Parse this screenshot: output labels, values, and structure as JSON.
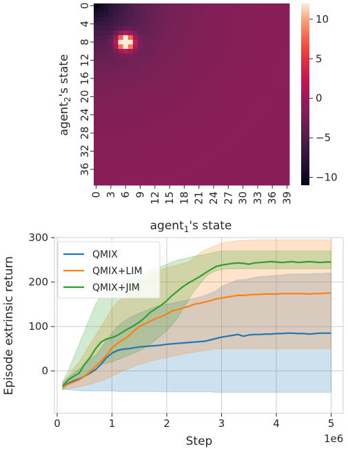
{
  "chart_data": [
    {
      "type": "heatmap",
      "xlabel_main": "agent",
      "xlabel_sub": "1",
      "xlabel_tail": "'s state",
      "ylabel_main": "agent",
      "ylabel_sub": "2",
      "ylabel_tail": "'s state",
      "grid_size": 40,
      "x_ticks": [
        "0",
        "3",
        "6",
        "9",
        "12",
        "15",
        "18",
        "21",
        "24",
        "27",
        "30",
        "33",
        "36",
        "39"
      ],
      "y_ticks": [
        "0",
        "4",
        "8",
        "12",
        "16",
        "20",
        "24",
        "28",
        "32",
        "36"
      ],
      "colorbar_ticks": [
        10,
        5,
        0,
        -5,
        -10
      ],
      "value_range": [
        -11,
        12
      ],
      "peak": {
        "x": 6,
        "y": 8,
        "value": 12
      },
      "floor_value": -11,
      "colormap": "rocket"
    },
    {
      "type": "line",
      "xlabel": "Step",
      "ylabel": "Episode extrinsic return",
      "x_offset_label": "1e6",
      "xlim": [
        -0.05,
        5.22
      ],
      "ylim": [
        -95,
        300
      ],
      "x_ticks": [
        0,
        1,
        2,
        3,
        4,
        5
      ],
      "y_ticks": [
        0,
        100,
        200,
        300
      ],
      "grid": true,
      "legend_position": "top-left",
      "x": [
        0.1,
        0.2,
        0.3,
        0.4,
        0.5,
        0.6,
        0.7,
        0.8,
        0.9,
        1.0,
        1.1,
        1.2,
        1.3,
        1.4,
        1.5,
        1.6,
        1.7,
        1.8,
        1.9,
        2.0,
        2.1,
        2.2,
        2.3,
        2.4,
        2.5,
        2.6,
        2.7,
        2.8,
        2.9,
        3.0,
        3.1,
        3.2,
        3.3,
        3.4,
        3.5,
        3.6,
        3.7,
        3.8,
        3.9,
        4.0,
        4.1,
        4.2,
        4.3,
        4.4,
        4.5,
        4.6,
        4.7,
        4.8,
        4.9,
        5.0
      ],
      "series": [
        {
          "name": "QMIX",
          "color": "#1f77b4",
          "values": [
            -35,
            -28,
            -22,
            -18,
            -12,
            -5,
            3,
            15,
            30,
            40,
            46,
            49,
            50,
            52,
            54,
            55,
            56,
            57,
            58,
            60,
            61,
            62,
            63,
            64,
            65,
            66,
            67,
            70,
            73,
            76,
            78,
            80,
            82,
            78,
            81,
            82,
            82,
            83,
            83,
            84,
            84,
            85,
            85,
            84,
            84,
            83,
            84,
            85,
            85,
            85
          ],
          "lower": [
            -40,
            -42,
            -43,
            -44,
            -45,
            -45,
            -45,
            -45,
            -45,
            -45,
            -46,
            -46,
            -46,
            -46,
            -46,
            -46,
            -46,
            -46,
            -47,
            -47,
            -47,
            -47,
            -47,
            -47,
            -47,
            -47,
            -47,
            -47,
            -48,
            -48,
            -48,
            -48,
            -48,
            -48,
            -48,
            -48,
            -48,
            -48,
            -48,
            -48,
            -48,
            -48,
            -48,
            -48,
            -48,
            -48,
            -48,
            -48,
            -48,
            -48
          ],
          "upper": [
            -28,
            -15,
            -5,
            5,
            15,
            25,
            35,
            50,
            70,
            85,
            100,
            110,
            118,
            125,
            130,
            135,
            140,
            145,
            148,
            150,
            152,
            155,
            158,
            160,
            163,
            166,
            170,
            175,
            180,
            190,
            195,
            200,
            205,
            205,
            207,
            210,
            212,
            213,
            214,
            215,
            216,
            217,
            218,
            218,
            218,
            218,
            219,
            219,
            220,
            220
          ]
        },
        {
          "name": "QMIX+LIM",
          "color": "#ff7f0e",
          "values": [
            -35,
            -30,
            -25,
            -20,
            -12,
            -2,
            10,
            22,
            35,
            52,
            62,
            70,
            78,
            90,
            100,
            106,
            112,
            118,
            122,
            128,
            135,
            138,
            142,
            145,
            150,
            152,
            155,
            158,
            162,
            164,
            166,
            168,
            170,
            170,
            171,
            172,
            172,
            173,
            173,
            173,
            174,
            174,
            174,
            174,
            174,
            173,
            174,
            174,
            175,
            175
          ],
          "lower": [
            -42,
            -40,
            -38,
            -36,
            -33,
            -30,
            -26,
            -22,
            -18,
            -12,
            -6,
            0,
            5,
            10,
            15,
            18,
            22,
            25,
            28,
            30,
            33,
            35,
            38,
            40,
            42,
            44,
            46,
            48,
            50,
            50,
            50,
            50,
            50,
            50,
            50,
            50,
            50,
            50,
            50,
            50,
            50,
            50,
            50,
            50,
            50,
            50,
            50,
            50,
            50,
            50
          ],
          "upper": [
            -25,
            -12,
            5,
            20,
            40,
            60,
            80,
            100,
            120,
            140,
            155,
            165,
            175,
            185,
            195,
            205,
            215,
            222,
            228,
            232,
            236,
            238,
            242,
            245,
            255,
            265,
            272,
            278,
            282,
            288,
            290,
            292,
            293,
            294,
            294,
            295,
            295,
            295,
            295,
            295,
            295,
            295,
            295,
            295,
            295,
            295,
            295,
            295,
            295,
            295
          ]
        },
        {
          "name": "QMIX+JIM",
          "color": "#2ca02c",
          "values": [
            -35,
            -20,
            -12,
            -5,
            15,
            30,
            50,
            65,
            72,
            75,
            80,
            88,
            95,
            102,
            110,
            120,
            132,
            140,
            148,
            158,
            170,
            180,
            190,
            198,
            205,
            212,
            220,
            228,
            235,
            238,
            240,
            242,
            243,
            242,
            240,
            243,
            244,
            245,
            246,
            245,
            244,
            245,
            246,
            244,
            245,
            246,
            245,
            244,
            245,
            245
          ],
          "lower": [
            -42,
            -30,
            -25,
            -20,
            -10,
            0,
            10,
            15,
            18,
            20,
            25,
            30,
            35,
            40,
            45,
            52,
            60,
            70,
            80,
            90,
            105,
            120,
            140,
            160,
            180,
            195,
            210,
            220,
            225,
            228,
            230,
            230,
            230,
            230,
            230,
            230,
            230,
            230,
            230,
            230,
            230,
            230,
            230,
            230,
            230,
            230,
            230,
            230,
            230,
            230
          ],
          "upper": [
            -25,
            0,
            30,
            60,
            90,
            120,
            150,
            170,
            180,
            190,
            195,
            200,
            205,
            210,
            215,
            220,
            225,
            230,
            235,
            240,
            245,
            250,
            252,
            255,
            258,
            260,
            262,
            265,
            268,
            270,
            270,
            270,
            270,
            270,
            270,
            270,
            270,
            270,
            270,
            270,
            270,
            270,
            270,
            270,
            270,
            270,
            270,
            270,
            270,
            270
          ]
        }
      ]
    }
  ]
}
